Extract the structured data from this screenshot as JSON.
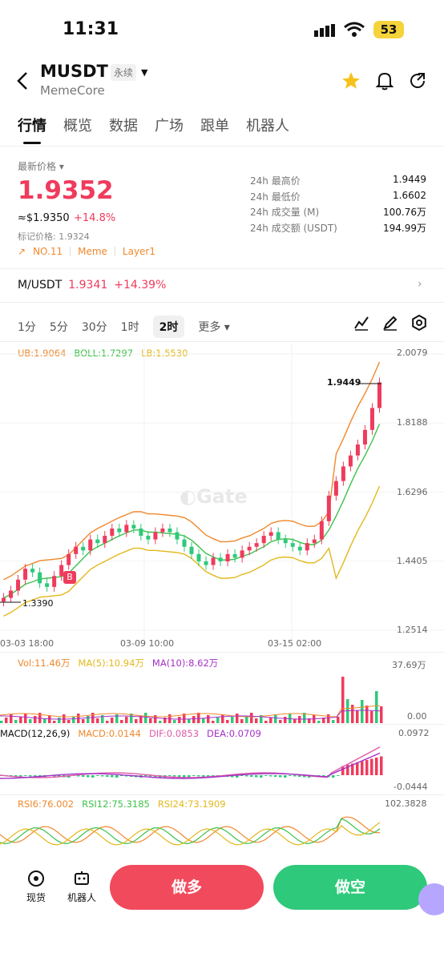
{
  "status": {
    "time": "11:31",
    "battery": "53"
  },
  "header": {
    "pair": "MUSDT",
    "tag": "永续",
    "subtitle": "MemeCore"
  },
  "tabs": [
    "行情",
    "概览",
    "数据",
    "广场",
    "跟单",
    "机器人"
  ],
  "price": {
    "label": "最新价格",
    "last": "1.9352",
    "usd": "≈$1.9350",
    "change": "+14.8%",
    "mark": "标记价格: 1.9324",
    "tags": [
      "NO.11",
      "Meme",
      "Layer1"
    ]
  },
  "stats": [
    {
      "k": "24h 最高价",
      "v": "1.9449"
    },
    {
      "k": "24h 最低价",
      "v": "1.6602"
    },
    {
      "k": "24h 成交量 (M)",
      "v": "100.76万"
    },
    {
      "k": "24h 成交额 (USDT)",
      "v": "194.99万"
    }
  ],
  "spot": {
    "pair": "M/USDT",
    "price": "1.9341",
    "change": "+14.39%"
  },
  "intervals": [
    "1分",
    "5分",
    "30分",
    "1时",
    "2时",
    "更多"
  ],
  "active_interval": "2时",
  "boll": {
    "ub": "UB:1.9064",
    "boll": "BOLL:1.7297",
    "lb": "LB:1.5530"
  },
  "vol": {
    "vol": "Vol:11.46万",
    "ma5": "MA(5):10.94万",
    "ma10": "MA(10):8.62万"
  },
  "macd": {
    "title": "MACD(12,26,9)",
    "macd": "MACD:0.0144",
    "dif": "DIF:0.0853",
    "dea": "DEA:0.0709"
  },
  "rsi": {
    "r6": "RSI6:76.002",
    "r12": "RSI12:75.3185",
    "r24": "RSI24:73.1909"
  },
  "chart_data": {
    "type": "line",
    "y_ticks": [
      "2.0079",
      "1.8188",
      "1.6296",
      "1.4405",
      "1.2514"
    ],
    "x_ticks": [
      "03-03 18:00",
      "03-09 10:00",
      "03-15 02:00"
    ],
    "high_marker": "1.9449",
    "low_marker": "1.3390",
    "vol_ticks": [
      "37.69万",
      "0.00"
    ],
    "macd_ticks": [
      "0.0972",
      "-0.0444"
    ],
    "rsi_ticks": [
      "102.3828"
    ],
    "ylim": [
      1.2514,
      2.0079
    ],
    "price_series": [
      1.34,
      1.36,
      1.39,
      1.42,
      1.41,
      1.38,
      1.37,
      1.4,
      1.43,
      1.46,
      1.48,
      1.47,
      1.5,
      1.49,
      1.51,
      1.53,
      1.52,
      1.54,
      1.53,
      1.51,
      1.5,
      1.52,
      1.53,
      1.52,
      1.5,
      1.48,
      1.46,
      1.44,
      1.43,
      1.45,
      1.44,
      1.46,
      1.45,
      1.47,
      1.48,
      1.49,
      1.51,
      1.52,
      1.5,
      1.49,
      1.48,
      1.47,
      1.49,
      1.5,
      1.55,
      1.62,
      1.66,
      1.7,
      1.73,
      1.76,
      1.8,
      1.86,
      1.93
    ]
  },
  "bottom": {
    "spot": "现货",
    "bot": "机器人",
    "long": "做多",
    "short": "做空"
  },
  "colors": {
    "up": "#ef3b5c",
    "down": "#2ec97a",
    "ub": "#f0882c",
    "mid": "#3cc24a",
    "lb": "#e3b81c",
    "macd": "#f0882c",
    "dif": "#e05aa8",
    "dea": "#a530c8"
  },
  "watermark": "Gate"
}
